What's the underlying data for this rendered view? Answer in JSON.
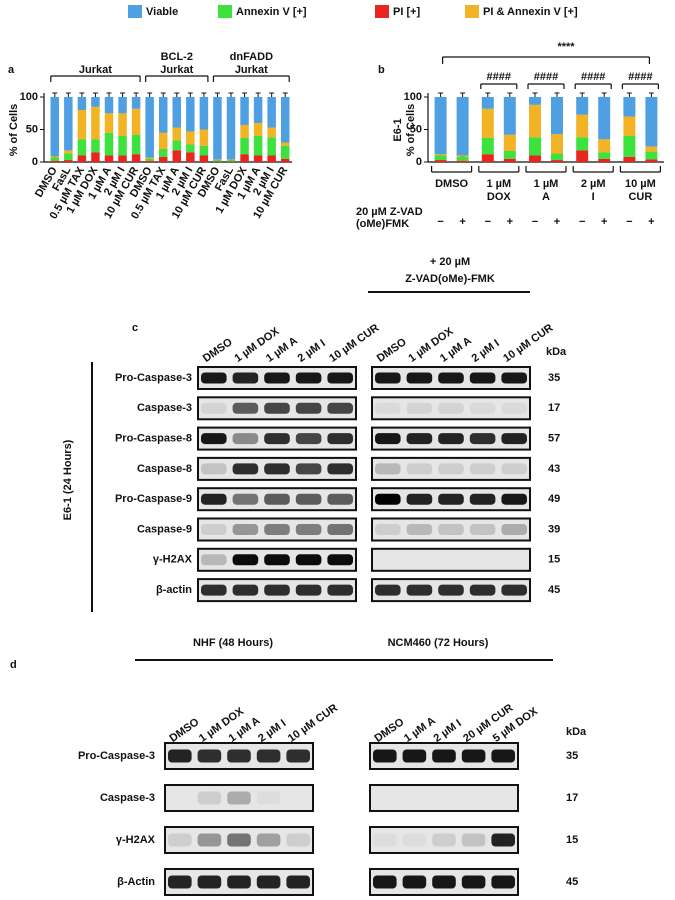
{
  "legend_note": null,
  "chart_data": [
    {
      "type": "bar",
      "stacked": true,
      "panel_label": "a",
      "ylabel": "% of Cells",
      "ylim": [
        0,
        100
      ],
      "yticks": [
        0,
        50,
        100
      ],
      "groups": [
        {
          "label": [
            "Jurkat"
          ],
          "categories": [
            "DMSO",
            "FasL",
            "0.5 µM TAX",
            "1 µM DOX",
            "1 µM A",
            "2 µM I",
            "10 µM CUR"
          ]
        },
        {
          "label": [
            "BCL-2",
            "Jurkat"
          ],
          "categories": [
            "DMSO",
            "0.5 µM TAX",
            "1 µM A",
            "2 µM I",
            "10 µM CUR"
          ]
        },
        {
          "label": [
            "dnFADD",
            "Jurkat"
          ],
          "categories": [
            "DMSO",
            "FasL",
            "1 µM DOX",
            "1 µM A",
            "2 µM I",
            "10 µM CUR"
          ]
        }
      ],
      "series": [
        {
          "name": "Viable",
          "color": "#4f9fe3",
          "values": [
            91,
            82,
            20,
            15,
            25,
            25,
            18,
            93,
            55,
            47,
            53,
            50,
            96,
            96,
            43,
            40,
            47,
            70
          ]
        },
        {
          "name": "Annexin V [+]",
          "color": "#3ee23e",
          "values": [
            5,
            10,
            25,
            20,
            35,
            30,
            30,
            3,
            12,
            15,
            12,
            15,
            2,
            2,
            25,
            30,
            28,
            20
          ]
        },
        {
          "name": "PI [+]",
          "color": "#e8261f",
          "values": [
            2,
            3,
            10,
            15,
            10,
            10,
            12,
            2,
            8,
            18,
            15,
            10,
            1,
            1,
            12,
            10,
            10,
            5
          ]
        },
        {
          "name": "PI & Annexin V [+]",
          "color": "#f2b324",
          "values": [
            2,
            5,
            45,
            50,
            30,
            35,
            40,
            2,
            25,
            20,
            20,
            25,
            1,
            1,
            20,
            20,
            15,
            5
          ]
        }
      ]
    },
    {
      "type": "bar",
      "stacked": true,
      "panel_label": "b",
      "ylabel": [
        "E6-1",
        "% of Cells"
      ],
      "ylim": [
        0,
        100
      ],
      "yticks": [
        0,
        50,
        100
      ],
      "groups": [
        {
          "label": [
            "DMSO"
          ],
          "categories": [
            "−",
            "+"
          ]
        },
        {
          "label": [
            "1 µM",
            "DOX"
          ],
          "categories": [
            "−",
            "+"
          ]
        },
        {
          "label": [
            "1 µM",
            "A"
          ],
          "categories": [
            "−",
            "+"
          ]
        },
        {
          "label": [
            "2 µM",
            "I"
          ],
          "categories": [
            "−",
            "+"
          ]
        },
        {
          "label": [
            "10 µM",
            "CUR"
          ],
          "categories": [
            "−",
            "+"
          ]
        }
      ],
      "row_label": [
        "20 µM Z-VAD",
        "(oMe)FMK"
      ],
      "group_annotations": [
        null,
        "####",
        "####",
        "####",
        "####"
      ],
      "overall_annotation": "****",
      "series": [
        {
          "name": "Viable",
          "color": "#4f9fe3",
          "values": [
            88,
            90,
            18,
            58,
            12,
            57,
            27,
            65,
            30,
            76
          ]
        },
        {
          "name": "Annexin V [+]",
          "color": "#3ee23e",
          "values": [
            7,
            6,
            25,
            12,
            28,
            10,
            20,
            10,
            32,
            12
          ]
        },
        {
          "name": "PI [+]",
          "color": "#e8261f",
          "values": [
            3,
            2,
            12,
            5,
            10,
            3,
            18,
            5,
            8,
            4
          ]
        },
        {
          "name": "PI & Annexin V [+]",
          "color": "#f2b324",
          "values": [
            2,
            2,
            45,
            25,
            50,
            30,
            35,
            20,
            30,
            8
          ]
        }
      ]
    }
  ],
  "panel_c": {
    "label": "c",
    "side_label": "E6-1 (24 Hours)",
    "treatment_label": [
      "+ 20 µM",
      "Z-VAD(oMe)-FMK"
    ],
    "kda_label": "kDa",
    "lanes": [
      "DMSO",
      "1 µM DOX",
      "1 µM A",
      "2 µM I",
      "10 µM CUR"
    ],
    "rows": [
      {
        "name": "Pro-Caspase-3",
        "kda": 35
      },
      {
        "name": "Caspase-3",
        "kda": 17
      },
      {
        "name": "Pro-Caspase-8",
        "kda": 57
      },
      {
        "name": "Caspase-8",
        "kda": 43
      },
      {
        "name": "Pro-Caspase-9",
        "kda": 49
      },
      {
        "name": "Caspase-9",
        "kda": 39
      },
      {
        "name": "γ-H2AX",
        "kda": 15
      },
      {
        "name": "β-actin",
        "kda": 45
      }
    ]
  },
  "panel_d": {
    "label": "d",
    "kda_label": "kDa",
    "blots": [
      {
        "title": "NHF (48 Hours)",
        "lanes": [
          "DMSO",
          "1 µM DOX",
          "1 µM A",
          "2 µM I",
          "10 µM CUR"
        ]
      },
      {
        "title": "NCM460 (72 Hours)",
        "lanes": [
          "DMSO",
          "1 µM A",
          "2 µM I",
          "20 µM CUR",
          "5 µM DOX"
        ]
      }
    ],
    "rows": [
      {
        "name": "Pro-Caspase-3",
        "kda": 35
      },
      {
        "name": "Caspase-3",
        "kda": 17
      },
      {
        "name": "γ-H2AX",
        "kda": 15
      },
      {
        "name": "β-Actin",
        "kda": 45
      }
    ]
  }
}
